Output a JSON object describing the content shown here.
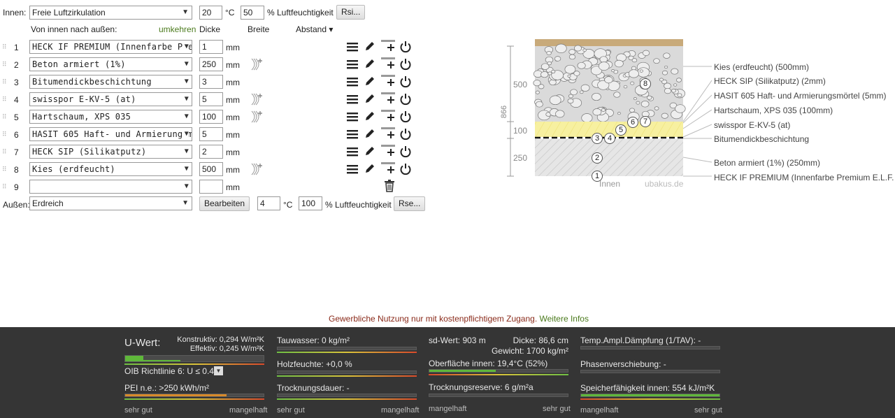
{
  "inner": {
    "label": "Innen:",
    "climate": "Freie Luftzirkulation",
    "temp": "20",
    "temp_unit": "°C",
    "humidity": "50",
    "humidity_label": "% Luftfeuchtigkeit",
    "rsi_button": "Rsi..."
  },
  "header": {
    "direction": "Von innen nach außen:",
    "reverse": "umkehren",
    "thickness": "Dicke",
    "width": "Breite",
    "spacing": "Abstand ▾"
  },
  "unit_mm": "mm",
  "layers": [
    {
      "num": "1",
      "material": "HECK IF PREMIUM (Innenfarbe Premi",
      "thickness": "1"
    },
    {
      "num": "2",
      "material": "Beton armiert (1%)",
      "thickness": "250"
    },
    {
      "num": "3",
      "material": "Bitumendickbeschichtung",
      "thickness": "3"
    },
    {
      "num": "4",
      "material": "swisspor E-KV-5 (at)",
      "thickness": "5"
    },
    {
      "num": "5",
      "material": "Hartschaum, XPS 035",
      "thickness": "100"
    },
    {
      "num": "6",
      "material": "HASIT 605 Haft- und Armierungsmörtl",
      "thickness": "5"
    },
    {
      "num": "7",
      "material": "HECK SIP (Silikatputz)",
      "thickness": "2"
    },
    {
      "num": "8",
      "material": "Kies (erdfeucht)",
      "thickness": "500"
    },
    {
      "num": "9",
      "material": "",
      "thickness": ""
    }
  ],
  "outer": {
    "label": "Außen:",
    "climate": "Erdreich",
    "edit_button": "Bearbeiten",
    "temp": "4",
    "temp_unit": "°C",
    "humidity": "100",
    "humidity_label": "% Luftfeuchtigkeit",
    "rse_button": "Rse..."
  },
  "diagram": {
    "dim_total": "866",
    "dim_500": "500",
    "dim_100": "100",
    "dim_250": "250",
    "inner_label": "Innen",
    "brand": "ubakus.de",
    "legend": [
      "Kies (erdfeucht) (500mm)",
      "HECK SIP (Silikatputz) (2mm)",
      "HASIT 605 Haft- und Armierungsmörtel (5mm)",
      "Hartschaum, XPS 035 (100mm)",
      "swisspor E-KV-5 (at)",
      "Bitumendickbeschichtung",
      "Beton armiert (1%) (250mm)",
      "HECK IF PREMIUM (Innenfarbe Premium E.L.F."
    ],
    "markers": [
      "1",
      "2",
      "3",
      "4",
      "5",
      "6",
      "7",
      "8"
    ],
    "colors": {
      "gravel": "#d8d8d8",
      "gravel_top": "#c8aa7a",
      "xps": "#f7f0a0",
      "concrete": "#e3e3e3"
    }
  },
  "notice": {
    "text": "Gewerbliche Nutzung nur mit kostenpflichtigem Zugang.",
    "link": "Weitere Infos"
  },
  "footer": {
    "uwert_title": "U-Wert:",
    "konstruktiv": "Konstruktiv: 0,294 W/m²K",
    "effektiv": "Effektiv: 0,245 W/m²K",
    "oib": "OIB Richtlinie 6: U ≤ 0.4*",
    "pei": "PEI n.e.: >250 kWh/m²",
    "tauwasser": "Tauwasser: 0 kg/m²",
    "holzfeuchte": "Holzfeuchte: +0,0 %",
    "trocknungsdauer": "Trocknungsdauer: -",
    "sdwert": "sd-Wert: 903 m",
    "dicke": "Dicke: 86,6 cm",
    "gewicht": "Gewicht: 1700 kg/m²",
    "oberflaeche": "Oberfläche innen: 19,4°C (52%)",
    "trocknungsreserve": "Trocknungsreserve: 6 g/m²a",
    "tav": "Temp.Ampl.Dämpfung (1/TAV): -",
    "phasen": "Phasenverschiebung: -",
    "speicher": "Speicherfähigkeit innen: 554 kJ/m²K",
    "sehr_gut": "sehr gut",
    "mangelhaft": "mangelhaft",
    "levels": {
      "uwert_konstruktiv": 0.13,
      "uwert_effektiv": 0.4,
      "pei": 0.73,
      "oberflaeche": 0.48,
      "speicher": 1.0
    }
  }
}
